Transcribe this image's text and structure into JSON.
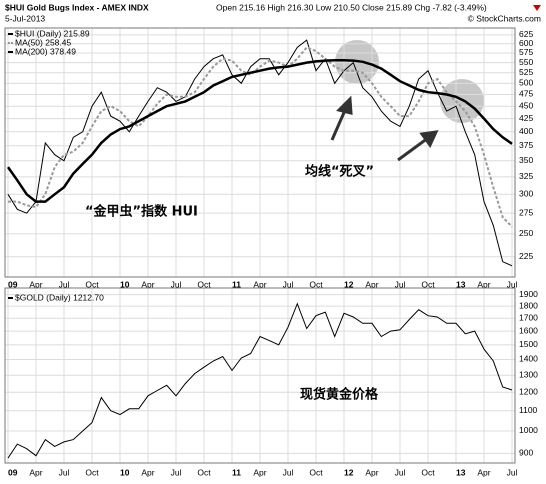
{
  "chart_data": [
    {
      "type": "line",
      "title": "$HUI Gold Bugs Index - AMEX INDX",
      "subtitle": "5-Jul-2013",
      "quote": "Open 215.16  High 216.30  Low 210.50  Close 215.89  Chg -7.82 (-3.49%)",
      "source": "© StockCharts.com",
      "annotations": [
        "“金甲虫”指数 HUI",
        "均线“死叉”"
      ],
      "log_scale": true,
      "grid": true,
      "x": [
        "2009-01",
        "2009-02",
        "2009-03",
        "2009-04",
        "2009-05",
        "2009-06",
        "2009-07",
        "2009-08",
        "2009-09",
        "2009-10",
        "2009-11",
        "2009-12",
        "2010-01",
        "2010-02",
        "2010-03",
        "2010-04",
        "2010-05",
        "2010-06",
        "2010-07",
        "2010-08",
        "2010-09",
        "2010-10",
        "2010-11",
        "2010-12",
        "2011-01",
        "2011-02",
        "2011-03",
        "2011-04",
        "2011-05",
        "2011-06",
        "2011-07",
        "2011-08",
        "2011-09",
        "2011-10",
        "2011-11",
        "2011-12",
        "2012-01",
        "2012-02",
        "2012-03",
        "2012-04",
        "2012-05",
        "2012-06",
        "2012-07",
        "2012-08",
        "2012-09",
        "2012-10",
        "2012-11",
        "2012-12",
        "2013-01",
        "2013-02",
        "2013-03",
        "2013-04",
        "2013-05",
        "2013-06",
        "2013-07"
      ],
      "series": [
        {
          "name": "$HUI (Daily) 215.89",
          "color": "#000000",
          "width": 1,
          "dashed": false,
          "values": [
            300,
            280,
            275,
            290,
            380,
            360,
            350,
            390,
            400,
            450,
            480,
            430,
            420,
            400,
            430,
            460,
            490,
            480,
            460,
            470,
            510,
            540,
            560,
            570,
            520,
            500,
            540,
            560,
            560,
            520,
            550,
            590,
            610,
            530,
            560,
            500,
            530,
            550,
            490,
            470,
            440,
            420,
            410,
            450,
            510,
            530,
            480,
            440,
            450,
            400,
            360,
            290,
            260,
            220,
            215.89
          ]
        },
        {
          "name": "MA(50) 258.45",
          "color": "#999999",
          "width": 2,
          "dashed": true,
          "values": [
            290,
            290,
            285,
            283,
            300,
            340,
            360,
            365,
            380,
            410,
            440,
            450,
            440,
            420,
            410,
            430,
            455,
            475,
            470,
            470,
            480,
            510,
            540,
            560,
            555,
            530,
            520,
            540,
            555,
            550,
            540,
            560,
            590,
            580,
            560,
            540,
            530,
            530,
            525,
            500,
            470,
            450,
            430,
            430,
            460,
            500,
            510,
            480,
            460,
            440,
            410,
            360,
            310,
            270,
            258.45
          ]
        },
        {
          "name": "MA(200) 378.49",
          "color": "#000000",
          "width": 2.5,
          "dashed": false,
          "values": [
            340,
            320,
            300,
            290,
            290,
            300,
            310,
            330,
            345,
            360,
            380,
            395,
            405,
            410,
            420,
            430,
            440,
            450,
            455,
            460,
            470,
            480,
            495,
            505,
            515,
            520,
            525,
            530,
            535,
            538,
            540,
            545,
            550,
            553,
            555,
            556,
            556,
            555,
            552,
            545,
            535,
            520,
            505,
            495,
            485,
            480,
            478,
            475,
            470,
            460,
            445,
            425,
            405,
            390,
            378.49
          ]
        }
      ],
      "ylim": [
        205,
        645
      ],
      "yticks": [
        225,
        250,
        275,
        300,
        325,
        350,
        375,
        400,
        425,
        450,
        475,
        500,
        525,
        550,
        575,
        600,
        625
      ],
      "xticks": [
        {
          "value": "2009-01",
          "label": "09"
        },
        {
          "value": "2009-04",
          "label": "Apr"
        },
        {
          "value": "2009-07",
          "label": "Jul"
        },
        {
          "value": "2009-10",
          "label": "Oct"
        },
        {
          "value": "2010-01",
          "label": "10"
        },
        {
          "value": "2010-04",
          "label": "Apr"
        },
        {
          "value": "2010-07",
          "label": "Jul"
        },
        {
          "value": "2010-10",
          "label": "Oct"
        },
        {
          "value": "2011-01",
          "label": "11"
        },
        {
          "value": "2011-04",
          "label": "Apr"
        },
        {
          "value": "2011-07",
          "label": "Jul"
        },
        {
          "value": "2011-10",
          "label": "Oct"
        },
        {
          "value": "2012-01",
          "label": "12"
        },
        {
          "value": "2012-04",
          "label": "Apr"
        },
        {
          "value": "2012-07",
          "label": "Jul"
        },
        {
          "value": "2012-10",
          "label": "Oct"
        },
        {
          "value": "2013-01",
          "label": "13"
        },
        {
          "value": "2013-04",
          "label": "Apr"
        },
        {
          "value": "2013-07",
          "label": "Jul"
        }
      ]
    },
    {
      "type": "line",
      "annotations": [
        "现货黄金价格"
      ],
      "log_scale": true,
      "grid": true,
      "x": [
        "2009-01",
        "2009-02",
        "2009-03",
        "2009-04",
        "2009-05",
        "2009-06",
        "2009-07",
        "2009-08",
        "2009-09",
        "2009-10",
        "2009-11",
        "2009-12",
        "2010-01",
        "2010-02",
        "2010-03",
        "2010-04",
        "2010-05",
        "2010-06",
        "2010-07",
        "2010-08",
        "2010-09",
        "2010-10",
        "2010-11",
        "2010-12",
        "2011-01",
        "2011-02",
        "2011-03",
        "2011-04",
        "2011-05",
        "2011-06",
        "2011-07",
        "2011-08",
        "2011-09",
        "2011-10",
        "2011-11",
        "2011-12",
        "2012-01",
        "2012-02",
        "2012-03",
        "2012-04",
        "2012-05",
        "2012-06",
        "2012-07",
        "2012-08",
        "2012-09",
        "2012-10",
        "2012-11",
        "2012-12",
        "2013-01",
        "2013-02",
        "2013-03",
        "2013-04",
        "2013-05",
        "2013-06",
        "2013-07"
      ],
      "series": [
        {
          "name": "$GOLD (Daily) 1212.70",
          "color": "#000000",
          "width": 1,
          "dashed": false,
          "values": [
            880,
            940,
            920,
            890,
            960,
            930,
            950,
            960,
            1000,
            1040,
            1170,
            1100,
            1080,
            1110,
            1110,
            1180,
            1210,
            1240,
            1180,
            1250,
            1310,
            1350,
            1390,
            1420,
            1330,
            1410,
            1440,
            1560,
            1530,
            1500,
            1630,
            1820,
            1620,
            1720,
            1750,
            1560,
            1740,
            1710,
            1660,
            1660,
            1560,
            1600,
            1610,
            1690,
            1770,
            1720,
            1710,
            1660,
            1660,
            1580,
            1600,
            1470,
            1390,
            1230,
            1212.7
          ]
        }
      ],
      "ylim": [
        860,
        1960
      ],
      "yticks": [
        900,
        1000,
        1100,
        1200,
        1300,
        1400,
        1500,
        1600,
        1700,
        1800,
        1900
      ],
      "xticks": [
        {
          "value": "2009-01",
          "label": "09"
        },
        {
          "value": "2009-04",
          "label": "Apr"
        },
        {
          "value": "2009-07",
          "label": "Jul"
        },
        {
          "value": "2009-10",
          "label": "Oct"
        },
        {
          "value": "2010-01",
          "label": "10"
        },
        {
          "value": "2010-04",
          "label": "Apr"
        },
        {
          "value": "2010-07",
          "label": "Jul"
        },
        {
          "value": "2010-10",
          "label": "Oct"
        },
        {
          "value": "2011-01",
          "label": "11"
        },
        {
          "value": "2011-04",
          "label": "Apr"
        },
        {
          "value": "2011-07",
          "label": "Jul"
        },
        {
          "value": "2011-10",
          "label": "Oct"
        },
        {
          "value": "2012-01",
          "label": "12"
        },
        {
          "value": "2012-04",
          "label": "Apr"
        },
        {
          "value": "2012-07",
          "label": "Jul"
        },
        {
          "value": "2012-10",
          "label": "Oct"
        },
        {
          "value": "2013-01",
          "label": "13"
        },
        {
          "value": "2013-04",
          "label": "Apr"
        },
        {
          "value": "2013-07",
          "label": "Jul"
        }
      ]
    }
  ]
}
